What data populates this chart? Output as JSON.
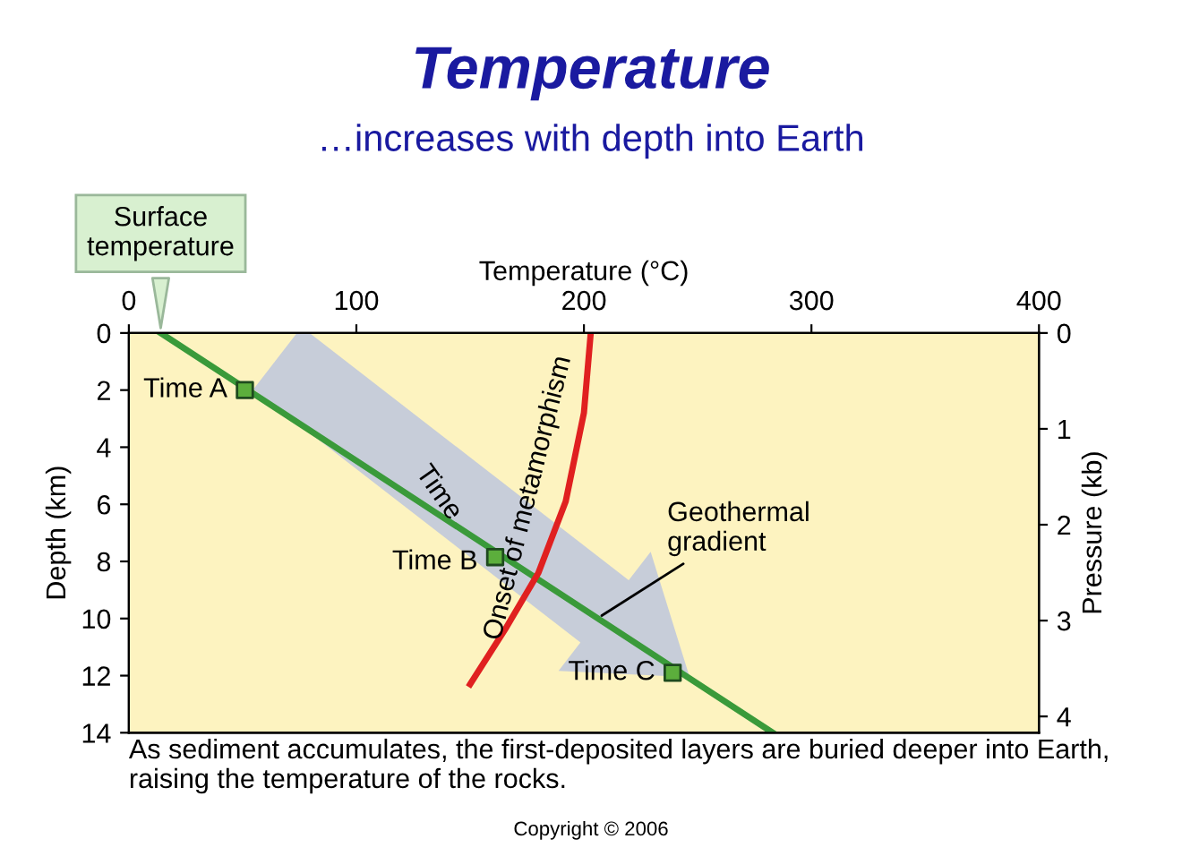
{
  "chart_data": {
    "type": "line",
    "title": "Temperature",
    "subtitle": "…increases with depth into Earth",
    "xlabel": "Temperature (°C)",
    "ylabel": "Depth (km)",
    "y2label": "Pressure (kb)",
    "xlim": [
      0,
      400
    ],
    "xticks": [
      0,
      100,
      200,
      300,
      400
    ],
    "ylim": [
      14,
      0
    ],
    "yticks": [
      0,
      2,
      4,
      6,
      8,
      10,
      12,
      14
    ],
    "y2lim": [
      4.17,
      0
    ],
    "y2ticks": [
      0,
      1,
      2,
      3,
      4
    ],
    "series": [
      {
        "color": "#3a9a3a",
        "x": [
          14,
          283
        ],
        "values": [
          0,
          14
        ],
        "marker": "none"
      },
      {
        "color": "#e02020",
        "x": [
          203,
          200,
          192,
          180,
          166,
          150
        ],
        "values": [
          0,
          2.8,
          5.9,
          8.4,
          10.3,
          12.3
        ],
        "marker": "none"
      },
      {
        "type": "scatter",
        "color": "#5cae3c",
        "x": [
          51,
          161,
          239
        ],
        "values": [
          2,
          7.85,
          11.9
        ],
        "marker": "square"
      }
    ],
    "annotations": [
      {
        "text": "Surface\ntemperature",
        "x": 14,
        "y": 0
      },
      {
        "text": "Time A",
        "x": 51,
        "y": 2
      },
      {
        "text": "Time B",
        "x": 161,
        "y": 7.85
      },
      {
        "text": "Time C",
        "x": 239,
        "y": 11.9
      },
      {
        "text": "Onset of metamorphism",
        "x": 180,
        "y": 8.4
      },
      {
        "text": "Geothermal\ngradient",
        "x": 206,
        "y": 9.99
      },
      "Time",
      "As sediment accumulates, the first-deposited layers are buried deeper into Earth, raising the temperature of the rocks.",
      "Copyright © 2006"
    ]
  }
}
